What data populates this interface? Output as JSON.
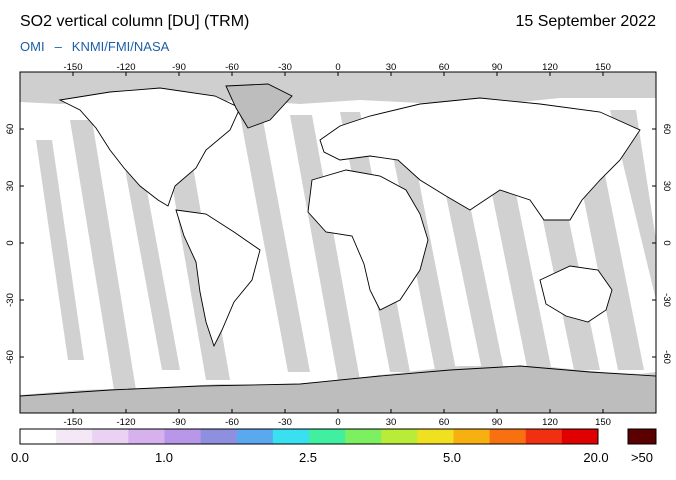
{
  "header": {
    "title": "SO2 vertical column [DU] (TRM)",
    "date": "15 September 2022",
    "credit_left": "OMI",
    "credit_sep": "–",
    "credit_right": "KNMI/FMI/NASA"
  },
  "map": {
    "lon_ticks_top": [
      "-150",
      "-120",
      "-90",
      "-60",
      "-30",
      "0",
      "30",
      "60",
      "90",
      "120",
      "150"
    ],
    "lon_ticks_bottom": [
      "-150",
      "-120",
      "-90",
      "-60",
      "-30",
      "0",
      "30",
      "60",
      "90",
      "120",
      "150"
    ],
    "lat_ticks_left": [
      "60",
      "30",
      "0",
      "-30",
      "-60"
    ],
    "lat_ticks_right": [
      "60",
      "30",
      "0",
      "-30",
      "-60"
    ],
    "colors": {
      "frame": "#000000",
      "polar_grey": "#bdbdbd",
      "swath_dark": "#9a9a9a",
      "swath_light": "#cfcfcf",
      "land_fill": "#bdbdbd"
    }
  },
  "colorbar": {
    "labels": [
      "0.0",
      "1.0",
      "2.5",
      "5.0",
      "20.0"
    ],
    "overflow_label": ">50",
    "colors": [
      "#ffffff",
      "#f4e7f6",
      "#ead2f3",
      "#d7b0ee",
      "#b896e8",
      "#8f8fe0",
      "#5aa8f0",
      "#38e0f0",
      "#40f0a0",
      "#7cf060",
      "#b8ec38",
      "#f0e020",
      "#f8b010",
      "#f87010",
      "#f03010",
      "#e00000"
    ],
    "overflow_color": "#5a0000"
  }
}
